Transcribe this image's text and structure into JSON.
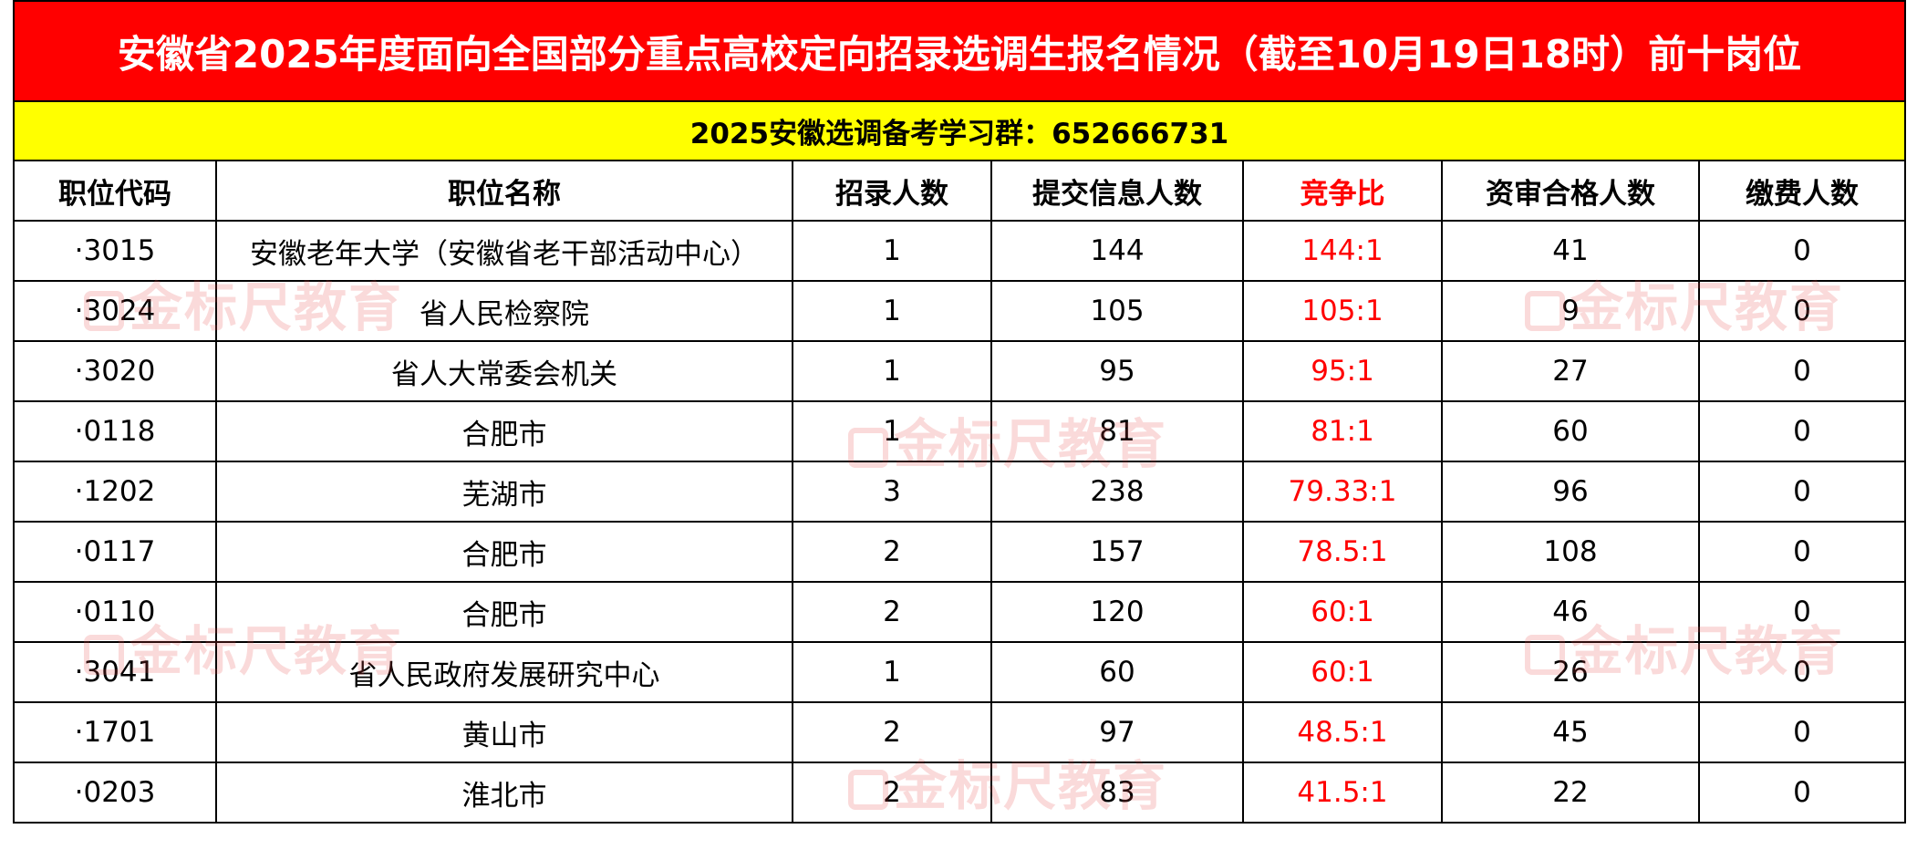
{
  "title": "安徽省2025年度面向全国部分重点高校定向招录选调生报名情况（截至10月19日18时）前十岗位",
  "subtitle": "2025安徽选调备考学习群：652666731",
  "headers": {
    "code": "职位代码",
    "name": "职位名称",
    "hire": "招录人数",
    "submitted": "提交信息人数",
    "ratio": "竞争比",
    "qualified": "资审合格人数",
    "paid": "缴费人数"
  },
  "rows": [
    {
      "code": "·3015",
      "name": "安徽老年大学（安徽省老干部活动中心）",
      "hire": "1",
      "submitted": "144",
      "ratio": "144:1",
      "qualified": "41",
      "paid": "0"
    },
    {
      "code": "·3024",
      "name": "省人民检察院",
      "hire": "1",
      "submitted": "105",
      "ratio": "105:1",
      "qualified": "9",
      "paid": "0"
    },
    {
      "code": "·3020",
      "name": "省人大常委会机关",
      "hire": "1",
      "submitted": "95",
      "ratio": "95:1",
      "qualified": "27",
      "paid": "0"
    },
    {
      "code": "·0118",
      "name": "合肥市",
      "hire": "1",
      "submitted": "81",
      "ratio": "81:1",
      "qualified": "60",
      "paid": "0"
    },
    {
      "code": "·1202",
      "name": "芜湖市",
      "hire": "3",
      "submitted": "238",
      "ratio": "79.33:1",
      "qualified": "96",
      "paid": "0"
    },
    {
      "code": "·0117",
      "name": "合肥市",
      "hire": "2",
      "submitted": "157",
      "ratio": "78.5:1",
      "qualified": "108",
      "paid": "0"
    },
    {
      "code": "·0110",
      "name": "合肥市",
      "hire": "2",
      "submitted": "120",
      "ratio": "60:1",
      "qualified": "46",
      "paid": "0"
    },
    {
      "code": "·3041",
      "name": "省人民政府发展研究中心",
      "hire": "1",
      "submitted": "60",
      "ratio": "60:1",
      "qualified": "26",
      "paid": "0"
    },
    {
      "code": "·1701",
      "name": "黄山市",
      "hire": "2",
      "submitted": "97",
      "ratio": "48.5:1",
      "qualified": "45",
      "paid": "0"
    },
    {
      "code": "·0203",
      "name": "淮北市",
      "hire": "2",
      "submitted": "83",
      "ratio": "41.5:1",
      "qualified": "22",
      "paid": "0"
    }
  ],
  "watermark": "金标尺教育",
  "colors": {
    "title_bg": "#ff0000",
    "subtitle_bg": "#ffff00",
    "ratio_text": "#ff0000"
  }
}
